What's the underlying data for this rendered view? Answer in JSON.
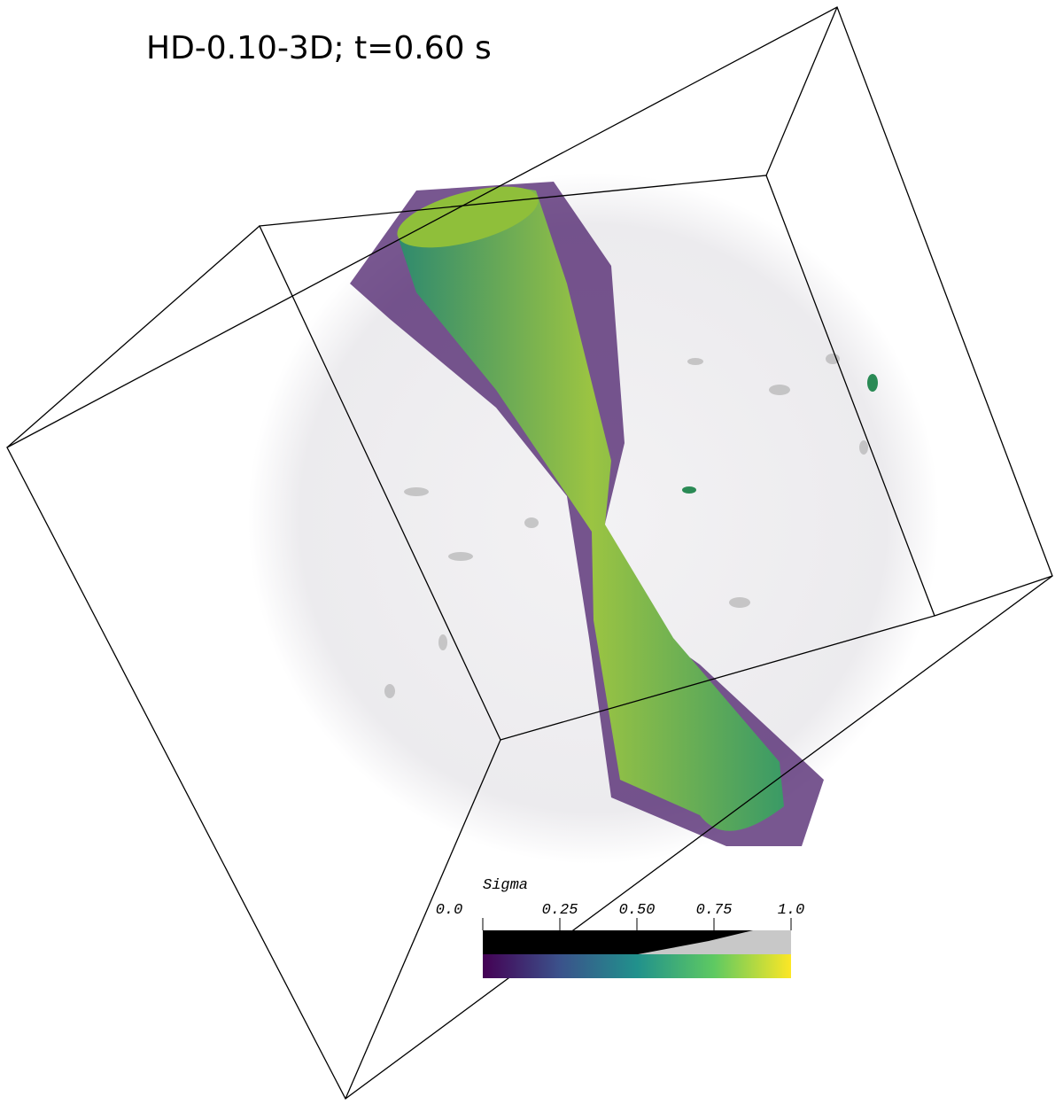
{
  "title": "HD-0.10-3D; t=0.60 s",
  "colorbar": {
    "label": "Sigma",
    "range": [
      0,
      1
    ],
    "ticks": [
      {
        "value": 0,
        "label": "0.0"
      },
      {
        "value": 0.25,
        "label": "0.25"
      },
      {
        "value": 0.5,
        "label": "0.50"
      },
      {
        "value": 0.75,
        "label": "0.75"
      },
      {
        "value": 1,
        "label": "1.0"
      }
    ]
  }
}
